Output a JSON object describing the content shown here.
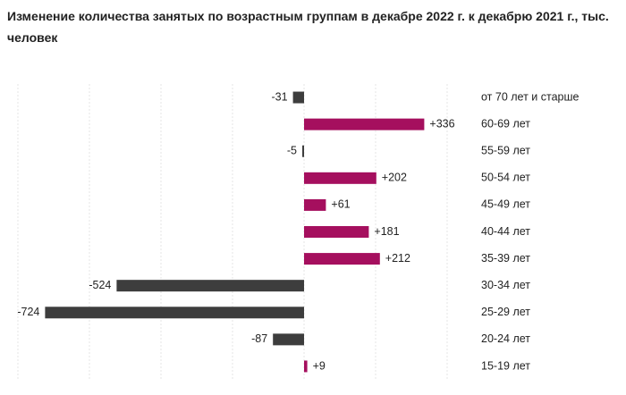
{
  "chart_data": {
    "type": "diverging-bar",
    "title": "Изменение количества занятых по возрастным группам в декабре 2022 г. к декабрю 2021 г., тыс. человек",
    "categories": [
      "от 70 лет и старше",
      "60-69 лет",
      "55-59 лет",
      "50-54 лет",
      "45-49 лет",
      "40-44 лет",
      "35-39 лет",
      "30-34 лет",
      "25-29 лет",
      "20-24 лет",
      "15-19 лет"
    ],
    "values": [
      -31,
      336,
      -5,
      202,
      61,
      181,
      212,
      -524,
      -724,
      -87,
      9
    ],
    "value_labels": [
      "-31",
      "+336",
      "-5",
      "+202",
      "+61",
      "+181",
      "+212",
      "-524",
      "-724",
      "-87",
      "+9"
    ],
    "positive_color": "#a50f5e",
    "negative_color": "#3d3d3d",
    "xlim": [
      -800,
      450
    ],
    "xticks": [
      -800,
      -600,
      -400,
      -200,
      0,
      200,
      400
    ],
    "grid": true
  }
}
